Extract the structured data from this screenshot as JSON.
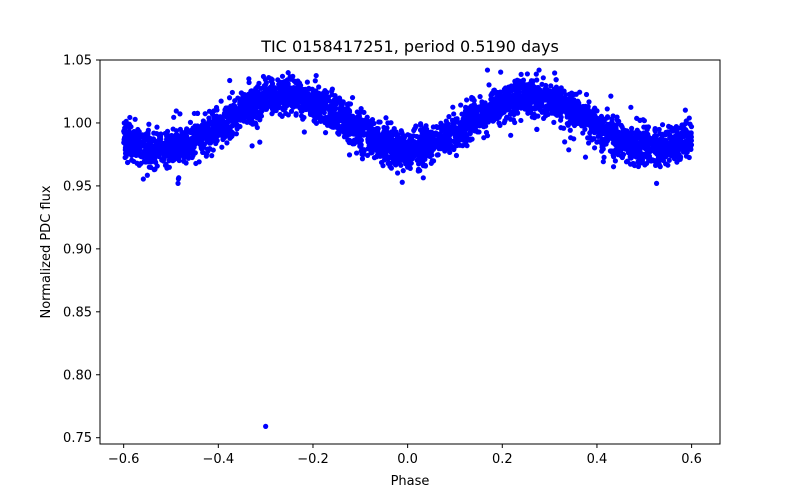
{
  "chart_data": {
    "type": "scatter",
    "title": "TIC 0158417251, period 0.5190 days",
    "xlabel": "Phase",
    "ylabel": "Normalized PDC flux",
    "xlim": [
      -0.65,
      0.66
    ],
    "ylim": [
      0.745,
      1.05
    ],
    "grid": false,
    "x_ticks": [
      -0.6,
      -0.4,
      -0.2,
      0.0,
      0.2,
      0.4,
      0.6
    ],
    "x_tick_labels": [
      "−0.6",
      "−0.4",
      "−0.2",
      "0.0",
      "0.2",
      "0.4",
      "0.6"
    ],
    "y_ticks": [
      0.75,
      0.8,
      0.85,
      0.9,
      0.95,
      1.0,
      1.05
    ],
    "y_tick_labels": [
      "0.75",
      "0.80",
      "0.85",
      "0.90",
      "0.95",
      "1.00",
      "1.05"
    ],
    "series": [
      {
        "name": "flux",
        "color": "#0000ff",
        "model": {
          "description": "dense phase-folded light curve, approx. sinusoidal",
          "phase_range": [
            -0.6,
            0.6
          ],
          "mean": 1.0,
          "amplitude": 0.021,
          "period_in_phase": 0.519,
          "peak_phase": 0.26,
          "noise_sigma": 0.007,
          "max_flux_observed": 1.042,
          "min_flux_observed": 0.952
        },
        "outliers": [
          {
            "x": -0.3,
            "y": 0.759
          }
        ]
      }
    ]
  }
}
